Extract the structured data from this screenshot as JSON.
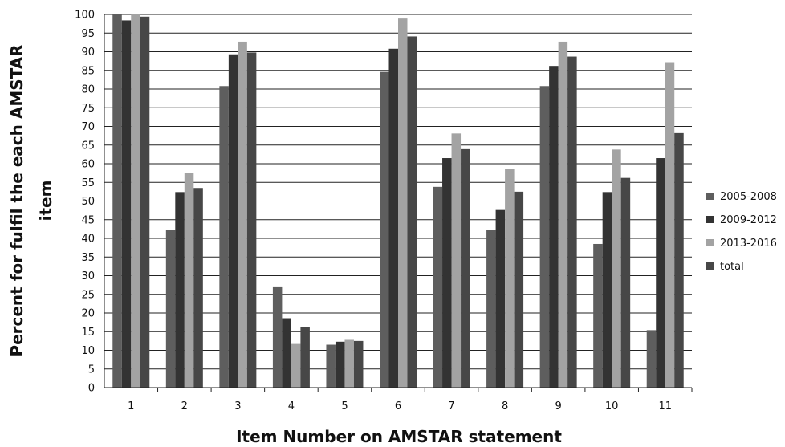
{
  "chart_data": {
    "type": "bar",
    "title": "",
    "xlabel": "Item Number on AMSTAR statement",
    "ylabel": "Percent for fulfil the each AMSTAR item",
    "ylabel_lines": [
      "Percent for fulfil the each AMSTAR",
      "item"
    ],
    "ylim": [
      0,
      100
    ],
    "ytick_step": 5,
    "grid": true,
    "legend_position": "right",
    "categories": [
      "1",
      "2",
      "3",
      "4",
      "5",
      "6",
      "7",
      "8",
      "9",
      "10",
      "11"
    ],
    "series": [
      {
        "name": "2005-2008",
        "color": "#5e5e5e",
        "values": [
          100,
          42.3,
          80.8,
          26.9,
          11.5,
          84.6,
          53.8,
          42.3,
          80.8,
          38.5,
          15.4
        ]
      },
      {
        "name": "2009-2012",
        "color": "#333333",
        "values": [
          98.4,
          52.4,
          89.3,
          18.6,
          12.3,
          90.8,
          61.5,
          47.6,
          86.2,
          52.4,
          61.5
        ]
      },
      {
        "name": "2013-2016",
        "color": "#a3a3a3",
        "values": [
          100,
          57.5,
          92.7,
          11.7,
          12.8,
          98.9,
          68.1,
          58.5,
          92.7,
          63.8,
          87.2
        ]
      },
      {
        "name": "total",
        "color": "#474747",
        "values": [
          99.4,
          53.5,
          89.8,
          16.3,
          12.5,
          94.1,
          63.9,
          52.5,
          88.7,
          56.2,
          68.2
        ]
      }
    ]
  }
}
